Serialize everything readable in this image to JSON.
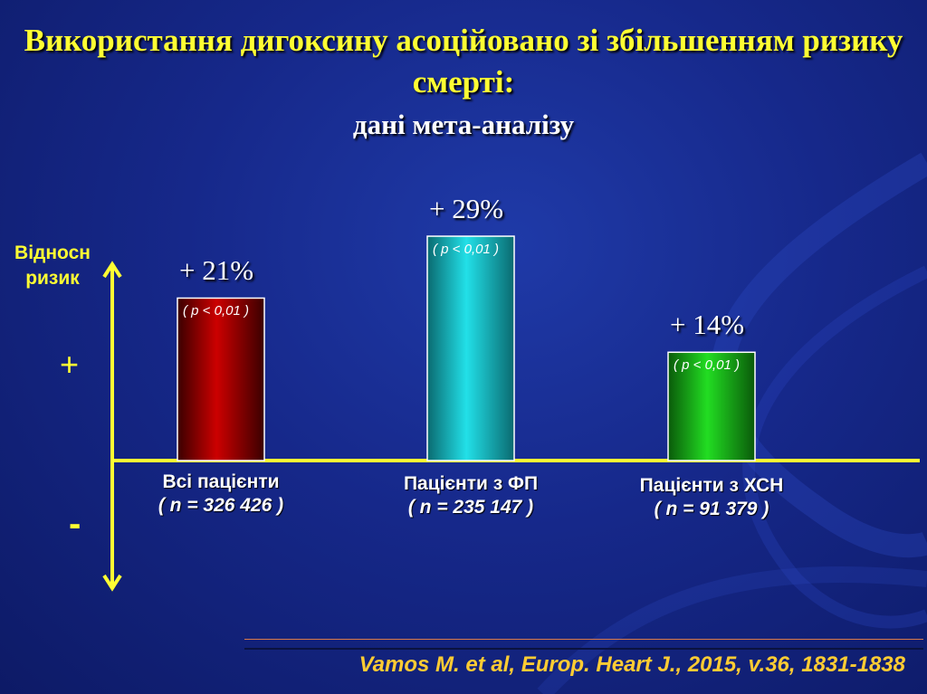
{
  "slide": {
    "title": "Використання дигоксину асоційовано зі збільшенням ризику смерті:",
    "subtitle": "дані мета-аналізу",
    "citation": "Vamos M. et al, Europ. Heart J., 2015, v.36, 1831-1838"
  },
  "chart_data": {
    "type": "bar",
    "title": "Використання дигоксину асоційовано зі збільшенням ризику смерті:",
    "subtitle": "дані мета-аналізу",
    "ylabel": "Відносн ризик",
    "axis_plus": "+",
    "axis_minus": "-",
    "ylim": [
      -10,
      33
    ],
    "categories": [
      "Всі пацієнти",
      "Пацієнти з ФП",
      "Пацієнти з  ХСН"
    ],
    "sample_sizes": [
      "( n = 326 426 )",
      "( n = 235 147 )",
      "( n = 91 379 )"
    ],
    "values": [
      21,
      29,
      14
    ],
    "value_labels": [
      "+ 21%",
      "+ 29%",
      "+ 14%"
    ],
    "p_values": [
      "( p < 0,01 )",
      "( p < 0,01 )",
      "( p < 0,01 )"
    ],
    "colors": [
      "#cc0000",
      "#22e0e8",
      "#22dd22"
    ],
    "colors_dark": [
      "#3a0000",
      "#0a6a70",
      "#0a5a0a"
    ],
    "axis_color": "#ffff33",
    "grid": false
  }
}
